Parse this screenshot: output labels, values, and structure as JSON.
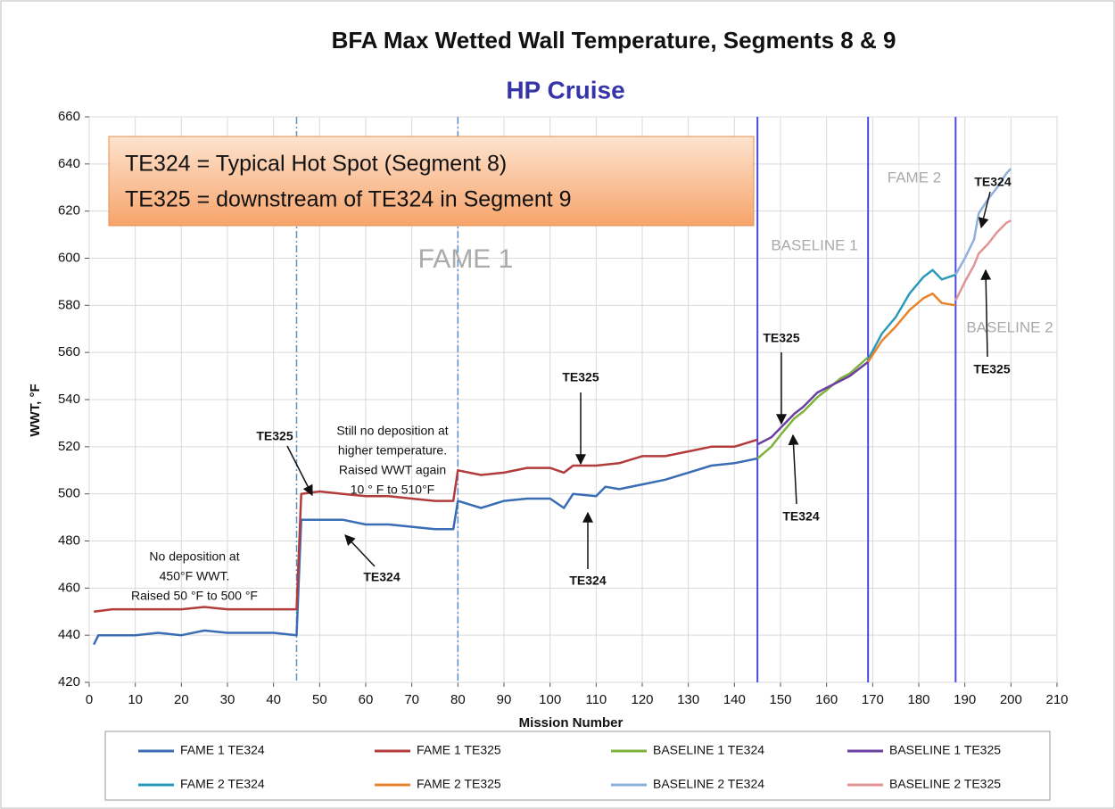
{
  "chart_data": {
    "type": "line",
    "title": "BFA Max Wetted Wall Temperature, Segments 8 & 9",
    "subtitle": "HP Cruise",
    "xlabel": "Mission Number",
    "ylabel": "WWT, °F",
    "xlim": [
      0,
      210
    ],
    "ylim": [
      420,
      660
    ],
    "xticks": [
      0,
      10,
      20,
      30,
      40,
      50,
      60,
      70,
      80,
      90,
      100,
      110,
      120,
      130,
      140,
      150,
      160,
      170,
      180,
      190,
      200,
      210
    ],
    "yticks": [
      420,
      440,
      460,
      480,
      500,
      520,
      540,
      560,
      580,
      600,
      620,
      640,
      660
    ],
    "grid": true,
    "note_box": [
      "TE324 = Typical Hot Spot (Segment 8)",
      "TE325 = downstream of TE324 in Segment 9"
    ],
    "regions": [
      "FAME 1",
      "BASELINE 1",
      "FAME 2",
      "BASELINE 2"
    ],
    "region_lines": [
      {
        "x": 45,
        "style": "dashdot"
      },
      {
        "x": 80,
        "style": "dashdot"
      },
      {
        "x": 145,
        "style": "solid"
      },
      {
        "x": 169,
        "style": "solid"
      },
      {
        "x": 188,
        "style": "solid"
      }
    ],
    "annotations": [
      [
        "No deposition at",
        "450°F WWT.",
        "Raised 50 °F to 500 °F"
      ],
      [
        "Still no deposition at",
        "higher temperature.",
        "Raised WWT again",
        "10 ° F to 510°F"
      ]
    ],
    "callouts": [
      "TE325",
      "TE324",
      "TE325",
      "TE324",
      "TE325",
      "TE324",
      "TE324",
      "TE325"
    ],
    "series": [
      {
        "name": "FAME 1 TE324",
        "color": "#3a6db4",
        "x": [
          1,
          2,
          5,
          10,
          15,
          20,
          25,
          30,
          35,
          40,
          45,
          46,
          50,
          55,
          60,
          65,
          70,
          75,
          79,
          80,
          85,
          90,
          95,
          100,
          103,
          105,
          110,
          112,
          115,
          120,
          125,
          130,
          135,
          140,
          145
        ],
        "values": [
          436,
          440,
          440,
          440,
          441,
          440,
          442,
          441,
          441,
          441,
          440,
          489,
          489,
          489,
          487,
          487,
          486,
          485,
          485,
          497,
          494,
          497,
          498,
          498,
          494,
          500,
          499,
          503,
          502,
          504,
          506,
          509,
          512,
          513,
          515
        ]
      },
      {
        "name": "FAME 1 TE325",
        "color": "#b23b3b",
        "x": [
          1,
          5,
          10,
          20,
          25,
          30,
          35,
          40,
          45,
          46,
          50,
          55,
          60,
          65,
          70,
          75,
          79,
          80,
          85,
          90,
          95,
          100,
          103,
          105,
          110,
          115,
          120,
          125,
          130,
          135,
          140,
          145
        ],
        "values": [
          450,
          451,
          451,
          451,
          452,
          451,
          451,
          451,
          451,
          500,
          501,
          500,
          499,
          499,
          498,
          497,
          497,
          510,
          508,
          509,
          511,
          511,
          509,
          512,
          512,
          513,
          516,
          516,
          518,
          520,
          520,
          523
        ]
      },
      {
        "name": "BASELINE 1 TE324",
        "color": "#7eb33b",
        "x": [
          145,
          148,
          150,
          153,
          155,
          158,
          160,
          163,
          165,
          169
        ],
        "values": [
          515,
          520,
          525,
          532,
          535,
          541,
          544,
          549,
          551,
          558
        ]
      },
      {
        "name": "BASELINE 1 TE325",
        "color": "#6a40a0",
        "x": [
          145,
          148,
          150,
          153,
          155,
          158,
          160,
          163,
          165,
          169
        ],
        "values": [
          521,
          524,
          528,
          534,
          537,
          543,
          545,
          548,
          550,
          556
        ]
      },
      {
        "name": "FAME 2 TE324",
        "color": "#2b9ab8",
        "x": [
          169,
          172,
          175,
          178,
          181,
          183,
          185,
          188
        ],
        "values": [
          557,
          568,
          575,
          585,
          592,
          595,
          591,
          593
        ]
      },
      {
        "name": "FAME 2 TE325",
        "color": "#e8832b",
        "x": [
          169,
          172,
          175,
          178,
          181,
          183,
          185,
          188
        ],
        "values": [
          556,
          565,
          571,
          578,
          583,
          585,
          581,
          580
        ]
      },
      {
        "name": "BASELINE 2 TE324",
        "color": "#8fb0dc",
        "x": [
          188,
          190,
          192,
          193,
          195,
          197,
          199,
          200
        ],
        "values": [
          593,
          600,
          608,
          619,
          625,
          630,
          636,
          638
        ]
      },
      {
        "name": "BASELINE 2 TE325",
        "color": "#e09494",
        "x": [
          188,
          190,
          192,
          193,
          195,
          197,
          199,
          200
        ],
        "values": [
          582,
          590,
          597,
          602,
          606,
          611,
          615,
          616
        ]
      }
    ]
  }
}
